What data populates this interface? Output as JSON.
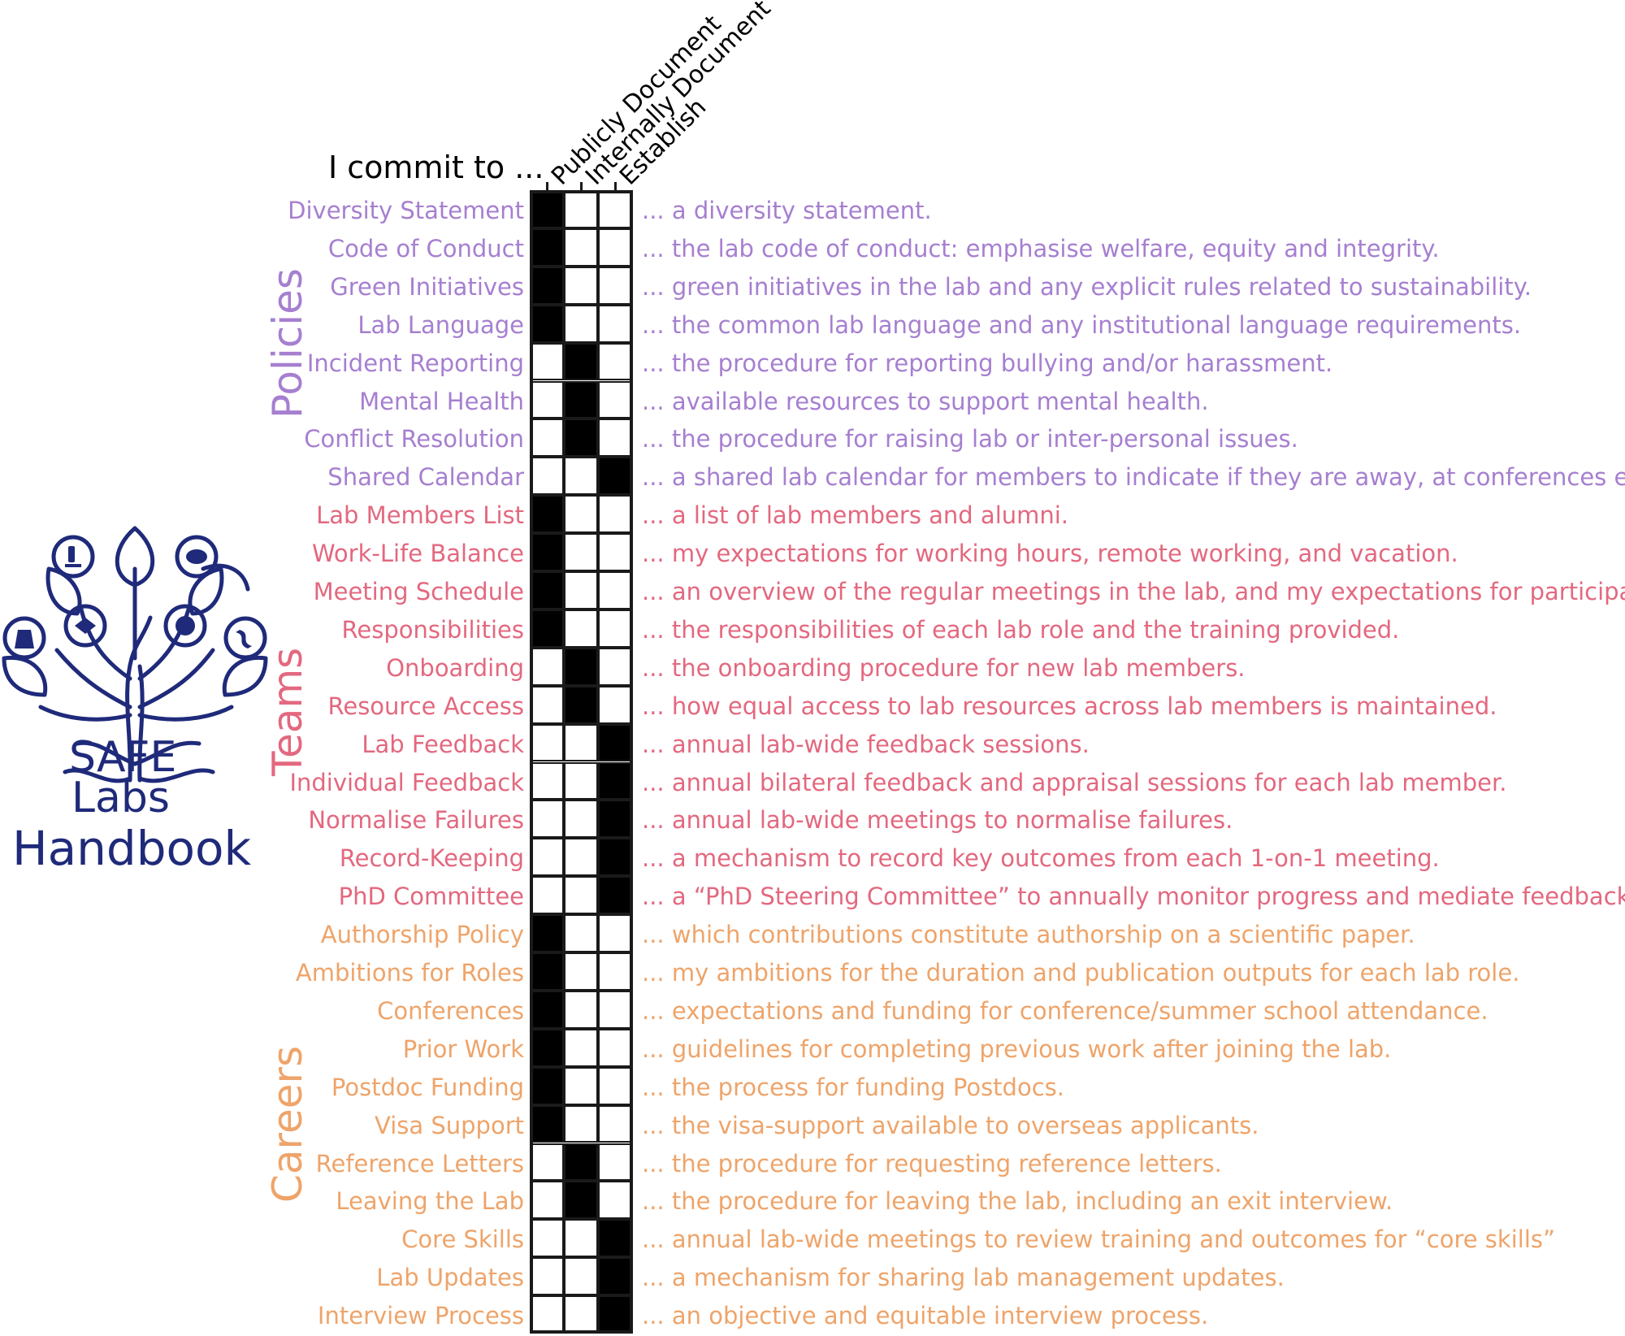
{
  "header": {
    "commit_label": "I commit to ...",
    "columns": [
      "Publicly Document",
      "Internally Document",
      "Establish"
    ]
  },
  "logo": {
    "line1": "SAFE",
    "line2": "Labs",
    "line3": "Handbook",
    "color": "#1f2a7a",
    "icons": [
      "flask-icon",
      "microscope-icon",
      "handshake-icon",
      "brain-icon",
      "globe-icon",
      "dna-icon"
    ]
  },
  "sections": [
    {
      "name": "Policies",
      "color": "#a67fd0"
    },
    {
      "name": "Teams",
      "color": "#e3687f"
    },
    {
      "name": "Careers",
      "color": "#eea46a"
    }
  ],
  "rows": [
    {
      "label": "Diversity Statement",
      "section": 0,
      "col": 0,
      "desc": "... a diversity statement."
    },
    {
      "label": "Code of Conduct",
      "section": 0,
      "col": 0,
      "desc": "... the lab code of conduct: emphasise welfare, equity and integrity."
    },
    {
      "label": "Green Initiatives",
      "section": 0,
      "col": 0,
      "desc": "... green initiatives in the lab and any explicit rules related to sustainability."
    },
    {
      "label": "Lab Language",
      "section": 0,
      "col": 0,
      "desc": "... the common lab language and any institutional language requirements."
    },
    {
      "label": "Incident Reporting",
      "section": 0,
      "col": 1,
      "desc": "... the procedure for reporting bullying and/or harassment."
    },
    {
      "label": "Mental Health",
      "section": 0,
      "col": 1,
      "desc": "... available resources to support mental health."
    },
    {
      "label": "Conflict Resolution",
      "section": 0,
      "col": 1,
      "desc": "... the procedure for raising lab or inter-personal issues."
    },
    {
      "label": "Shared Calendar",
      "section": 0,
      "col": 2,
      "desc": "... a shared lab calendar for members to indicate if they are away, at conferences etc."
    },
    {
      "label": "Lab Members List",
      "section": 1,
      "col": 0,
      "desc": "... a list of lab members and alumni."
    },
    {
      "label": "Work-Life Balance",
      "section": 1,
      "col": 0,
      "desc": "... my expectations for working hours, remote working, and vacation."
    },
    {
      "label": "Meeting Schedule",
      "section": 1,
      "col": 0,
      "desc": "... an overview of the regular meetings in the lab, and my expectations for participation."
    },
    {
      "label": "Responsibilities",
      "section": 1,
      "col": 0,
      "desc": "... the responsibilities of each lab role and the training provided."
    },
    {
      "label": "Onboarding",
      "section": 1,
      "col": 1,
      "desc": "... the onboarding procedure for new lab members."
    },
    {
      "label": "Resource Access",
      "section": 1,
      "col": 1,
      "desc": "... how equal access to lab resources across lab members is maintained."
    },
    {
      "label": "Lab Feedback",
      "section": 1,
      "col": 2,
      "desc": "... annual lab-wide feedback sessions."
    },
    {
      "label": "Individual Feedback",
      "section": 1,
      "col": 2,
      "desc": "... annual bilateral feedback and appraisal sessions for each lab member."
    },
    {
      "label": "Normalise Failures",
      "section": 1,
      "col": 2,
      "desc": "... annual lab-wide meetings to normalise failures."
    },
    {
      "label": "Record-Keeping",
      "section": 1,
      "col": 2,
      "desc": "... a mechanism to record key outcomes from each 1-on-1 meeting."
    },
    {
      "label": "PhD Committee",
      "section": 1,
      "col": 2,
      "desc": "... a “PhD Steering Committee” to annually monitor progress and mediate feedback"
    },
    {
      "label": "Authorship Policy",
      "section": 2,
      "col": 0,
      "desc": "... which contributions constitute authorship on a scientific paper."
    },
    {
      "label": "Ambitions for Roles",
      "section": 2,
      "col": 0,
      "desc": "... my ambitions for the duration and publication outputs for each lab role."
    },
    {
      "label": "Conferences",
      "section": 2,
      "col": 0,
      "desc": "... expectations and funding for conference/summer school attendance."
    },
    {
      "label": "Prior Work",
      "section": 2,
      "col": 0,
      "desc": "... guidelines for completing previous work after joining the lab."
    },
    {
      "label": "Postdoc Funding",
      "section": 2,
      "col": 0,
      "desc": "... the process for funding Postdocs."
    },
    {
      "label": "Visa Support",
      "section": 2,
      "col": 0,
      "desc": "... the visa-support available to overseas applicants."
    },
    {
      "label": "Reference Letters",
      "section": 2,
      "col": 1,
      "desc": "... the procedure for requesting reference letters."
    },
    {
      "label": "Leaving the Lab",
      "section": 2,
      "col": 1,
      "desc": "... the procedure for leaving the lab, including an exit interview."
    },
    {
      "label": "Core Skills",
      "section": 2,
      "col": 2,
      "desc": "... annual lab-wide meetings to review training and outcomes for “core skills”"
    },
    {
      "label": "Lab Updates",
      "section": 2,
      "col": 2,
      "desc": "... a mechanism for sharing lab management updates."
    },
    {
      "label": "Interview Process",
      "section": 2,
      "col": 2,
      "desc": "... an objective and equitable interview process."
    }
  ]
}
